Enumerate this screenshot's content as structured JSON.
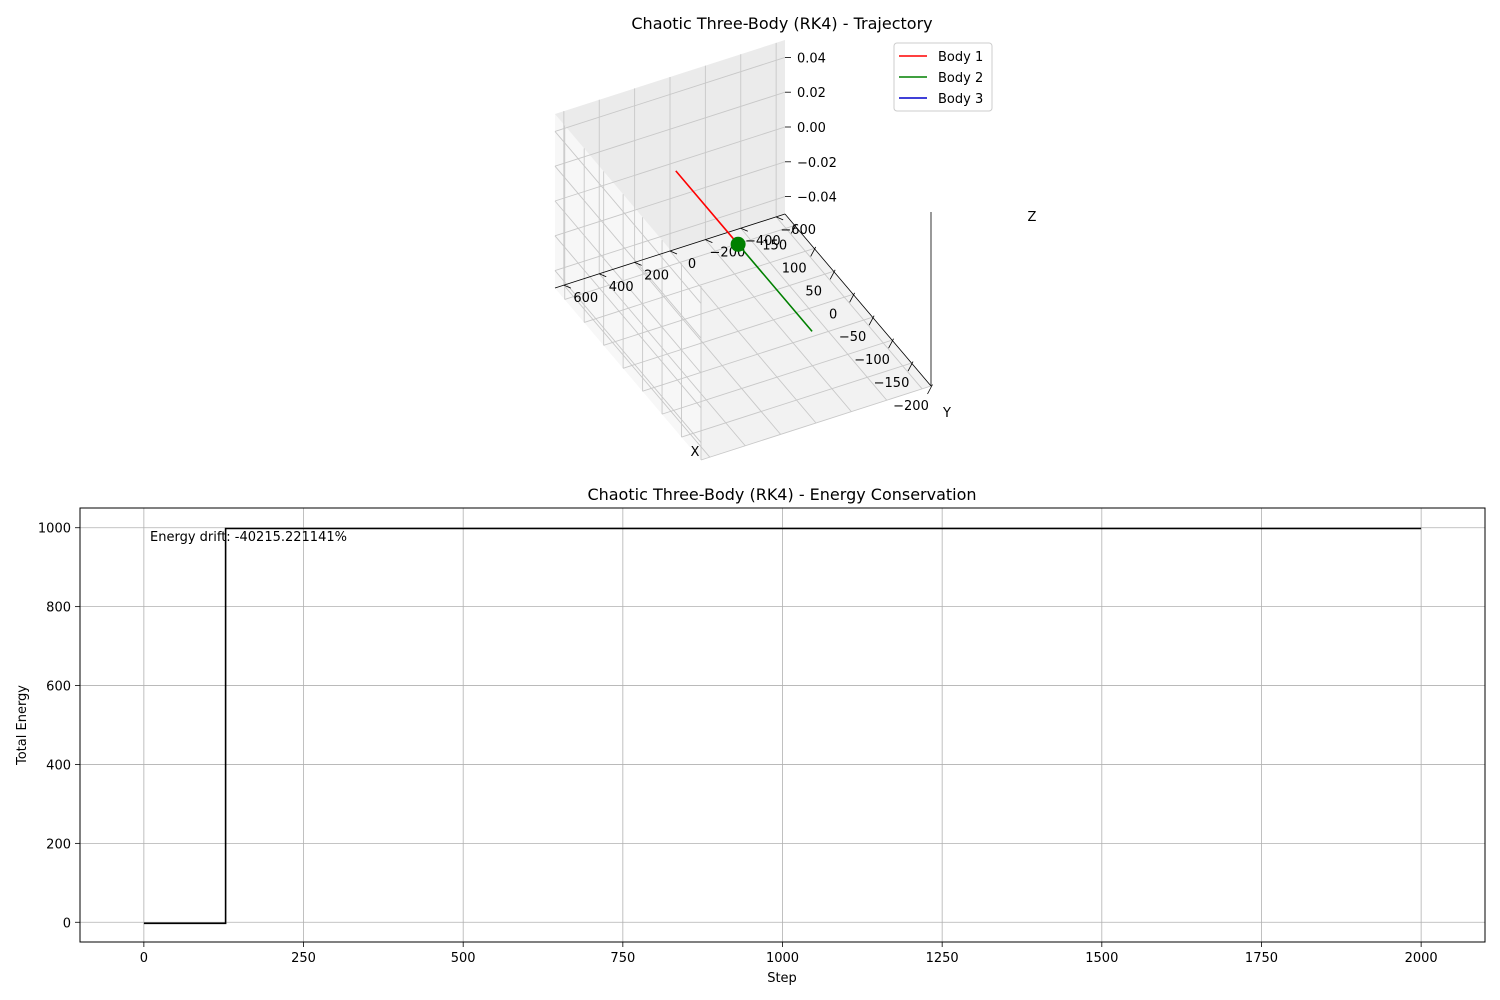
{
  "chart_data": [
    {
      "type": "line3d",
      "title": "Chaotic Three-Body (RK4) - Trajectory",
      "xlabel": "X",
      "ylabel": "Y",
      "zlabel": "Z",
      "xlim": [
        -200,
        175
      ],
      "ylim": [
        -650,
        650
      ],
      "zlim": [
        -0.05,
        0.05
      ],
      "xticks": [
        -200,
        -150,
        -100,
        -50,
        0,
        50,
        100,
        150
      ],
      "yticks": [
        -600,
        -400,
        -200,
        0,
        200,
        400,
        600
      ],
      "zticks": [
        -0.04,
        -0.02,
        0.0,
        0.02,
        0.04
      ],
      "xtick_labels": [
        "−200",
        "−150",
        "−100",
        "−50",
        "0",
        "50",
        "100",
        "150"
      ],
      "ytick_labels": [
        "−600",
        "−400",
        "−200",
        "0",
        "200",
        "400",
        "600"
      ],
      "ztick_labels": [
        "−0.04",
        "−0.02",
        "0.00",
        "0.02",
        "0.04"
      ],
      "legend_position": "upper right",
      "grid": true,
      "series": [
        {
          "name": "Body 1",
          "color": "#ff0000",
          "points": [
            [
              0,
              0,
              0
            ],
            [
              160,
              0,
              0
            ]
          ],
          "end_marker": false
        },
        {
          "name": "Body 2",
          "color": "#008000",
          "points": [
            [
              0,
              0,
              0
            ],
            [
              -190,
              0,
              0
            ]
          ],
          "end_marker": true,
          "marker_at": [
            0,
            0,
            0
          ]
        },
        {
          "name": "Body 3",
          "color": "#0000cc",
          "points": [
            [
              0,
              0,
              0
            ],
            [
              0,
              0,
              0
            ]
          ],
          "end_marker": false
        }
      ]
    },
    {
      "type": "line",
      "title": "Chaotic Three-Body (RK4) - Energy Conservation",
      "xlabel": "Step",
      "ylabel": "Total Energy",
      "xlim": [
        -100,
        2100
      ],
      "ylim": [
        -50,
        1050
      ],
      "xticks": [
        0,
        250,
        500,
        750,
        1000,
        1250,
        1500,
        1750,
        2000
      ],
      "yticks": [
        0,
        200,
        400,
        600,
        800,
        1000
      ],
      "grid": true,
      "annotation": "Energy drift: -40215.221141%",
      "series": [
        {
          "color": "#000000",
          "x": [
            0,
            90,
            128,
            128,
            2000
          ],
          "y": [
            -2.5,
            -2.5,
            -2.5,
            998,
            998
          ]
        }
      ]
    }
  ]
}
